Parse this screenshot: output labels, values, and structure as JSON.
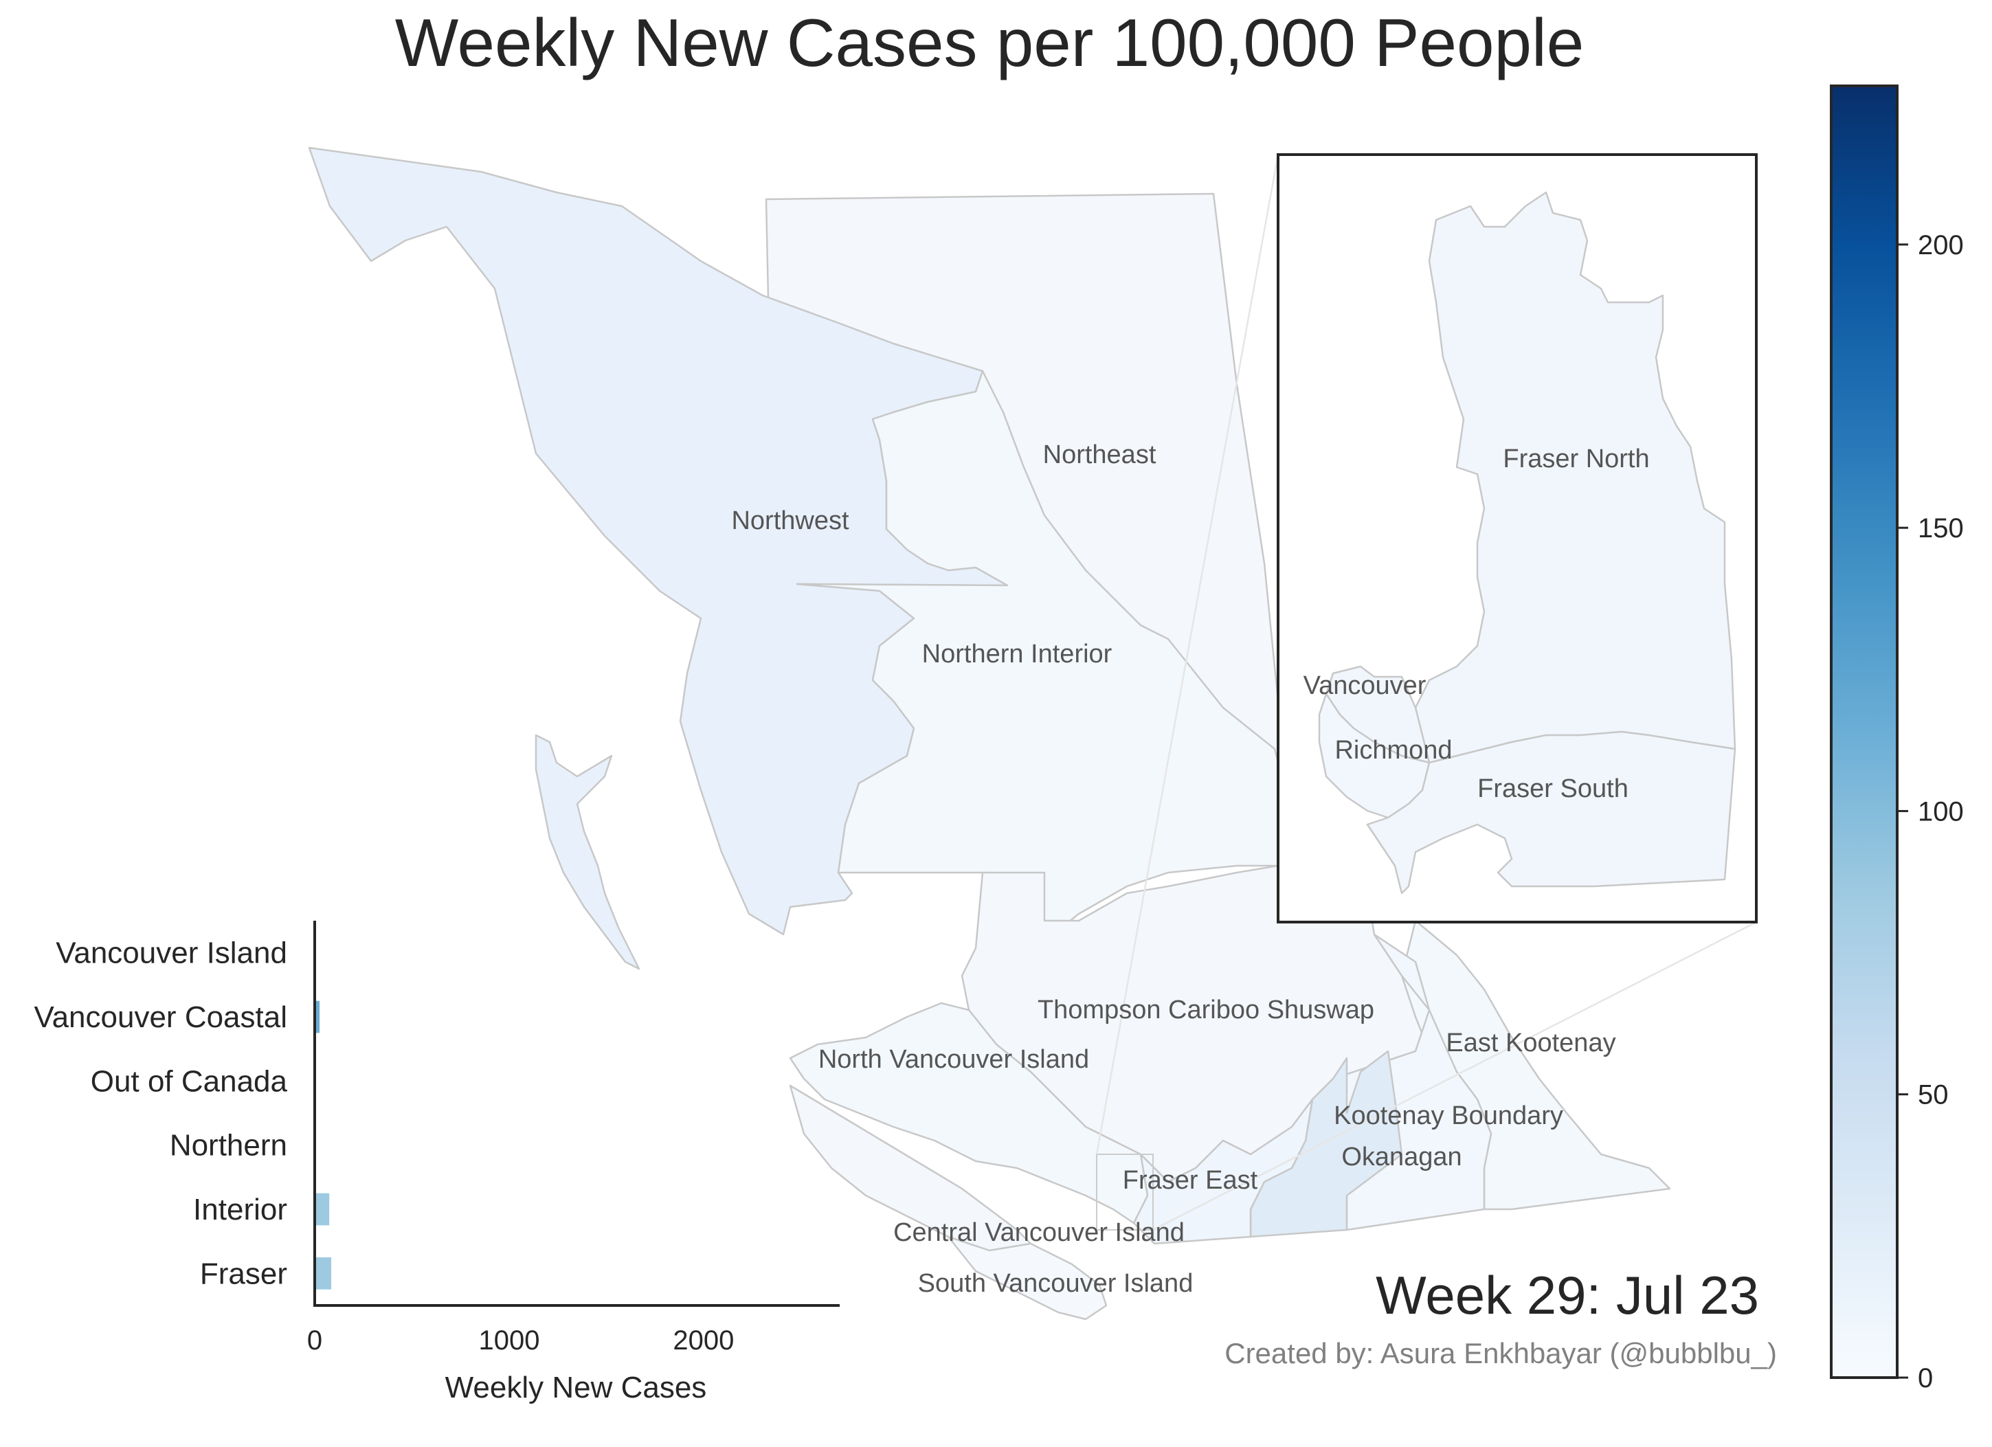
{
  "title": "Weekly New Cases per 100,000 People",
  "week_label": "Week 29: Jul 23",
  "credit": "Created by: Asura Enkhbayar (@bubblbu_)",
  "colorbar": {
    "min": 0,
    "max": 228,
    "ticks": [
      0,
      50,
      100,
      150,
      200
    ],
    "tick_labels": [
      "0",
      "50",
      "100",
      "150",
      "200"
    ],
    "colormap": "Blues",
    "stops": [
      "#f7fbff",
      "#deebf7",
      "#c6dbef",
      "#9ecae1",
      "#6baed6",
      "#4292c6",
      "#2171b5",
      "#08519c",
      "#08306b"
    ]
  },
  "map": {
    "border_color": "#c8c8c8",
    "regions": [
      {
        "name": "Northwest",
        "label": "Northwest",
        "rate": 8
      },
      {
        "name": "Northeast",
        "label": "Northeast",
        "rate": 2
      },
      {
        "name": "Northern Interior",
        "label": "Northern Interior",
        "rate": 3
      },
      {
        "name": "North Vancouver Island",
        "label": "North Vancouver Island",
        "rate": 3
      },
      {
        "name": "Thompson Cariboo Shuswap",
        "label": "Thompson Cariboo Shuswap",
        "rate": 3
      },
      {
        "name": "East Kootenay",
        "label": "East Kootenay",
        "rate": 3
      },
      {
        "name": "Kootenay Boundary",
        "label": "Kootenay Boundary",
        "rate": 4
      },
      {
        "name": "Okanagan",
        "label": "Okanagan",
        "rate": 13
      },
      {
        "name": "Fraser East",
        "label": "Fraser East",
        "rate": 5
      },
      {
        "name": "Central Vancouver Island",
        "label": "Central Vancouver Island",
        "rate": 2
      },
      {
        "name": "South Vancouver Island",
        "label": "South Vancouver Island",
        "rate": 2
      }
    ],
    "inset_regions": [
      {
        "name": "Fraser North",
        "label": "Fraser North",
        "rate": 4
      },
      {
        "name": "Vancouver",
        "label": "Vancouver",
        "rate": 5
      },
      {
        "name": "Richmond",
        "label": "Richmond",
        "rate": 3
      },
      {
        "name": "Fraser South",
        "label": "Fraser South",
        "rate": 4
      }
    ]
  },
  "chart_data": {
    "type": "bar",
    "orientation": "horizontal",
    "categories": [
      "Vancouver Island",
      "Vancouver Coastal",
      "Out of Canada",
      "Northern",
      "Interior",
      "Fraser"
    ],
    "values": [
      3,
      25,
      0,
      4,
      75,
      85
    ],
    "bar_colors": [
      "#f5f9fe",
      "#6aaed6",
      "#f7fbff",
      "#eef5fc",
      "#9ecae1",
      "#9ecae1"
    ],
    "xlabel": "Weekly New Cases",
    "xlim": [
      0,
      2700
    ],
    "xticks": [
      0,
      1000,
      2000
    ],
    "xtick_labels": [
      "0",
      "1000",
      "2000"
    ]
  }
}
